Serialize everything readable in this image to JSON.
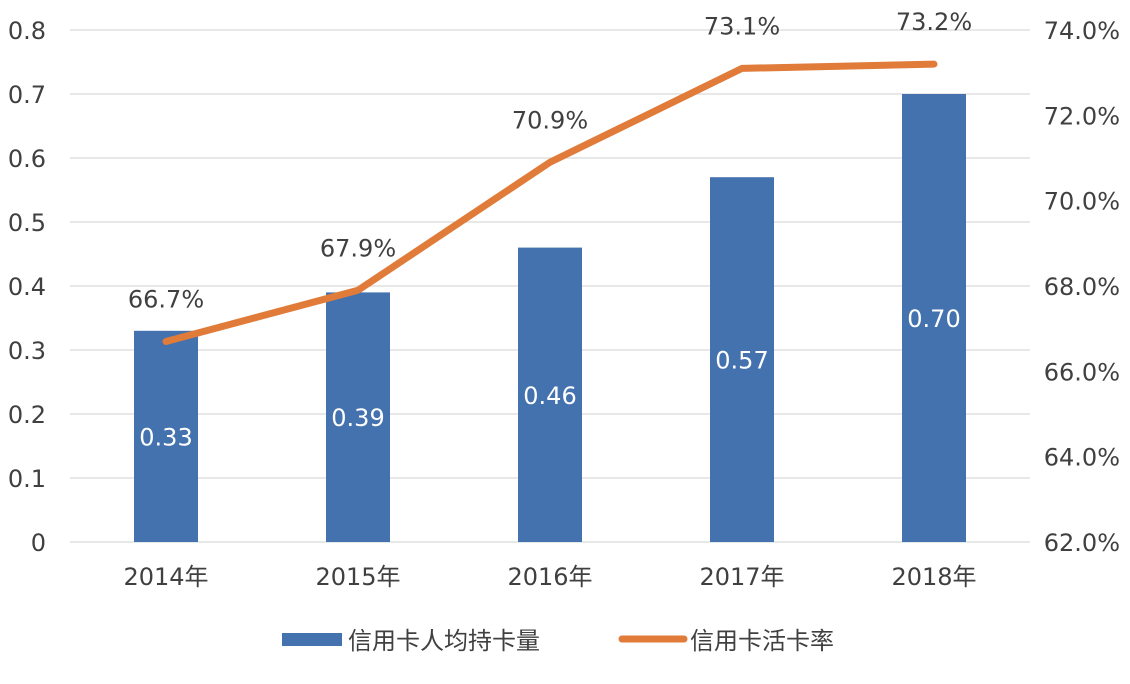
{
  "chart_data": {
    "type": "bar",
    "categories": [
      "2014年",
      "2015年",
      "2016年",
      "2017年",
      "2018年"
    ],
    "series": [
      {
        "name": "信用卡人均持卡量",
        "type": "bar",
        "axis": "left",
        "values": [
          0.33,
          0.39,
          0.46,
          0.57,
          0.7
        ],
        "labels": [
          "0.33",
          "0.39",
          "0.46",
          "0.57",
          "0.70"
        ],
        "color": "#4472AF"
      },
      {
        "name": "信用卡活卡率",
        "type": "line",
        "axis": "right",
        "values": [
          66.7,
          67.9,
          70.9,
          73.1,
          73.2
        ],
        "labels": [
          "66.7%",
          "67.9%",
          "70.9%",
          "73.1%",
          "73.2%"
        ],
        "color": "#E07B39"
      }
    ],
    "y_left": {
      "min": 0,
      "max": 0.8,
      "ticks": [
        0,
        0.1,
        0.2,
        0.3,
        0.4,
        0.5,
        0.6,
        0.7,
        0.8
      ],
      "tick_labels": [
        "0",
        "0.1",
        "0.2",
        "0.3",
        "0.4",
        "0.5",
        "0.6",
        "0.7",
        "0.8"
      ]
    },
    "y_right": {
      "min": 62.0,
      "max": 74.0,
      "ticks": [
        62,
        64,
        66,
        68,
        70,
        72,
        74
      ],
      "tick_labels": [
        "62.0%",
        "64.0%",
        "66.0%",
        "68.0%",
        "70.0%",
        "72.0%",
        "74.0%"
      ]
    },
    "grid": true,
    "legend_position": "bottom",
    "colors": {
      "grid": "#D9D9D9",
      "text": "#404040",
      "bar_label": "#FFFFFF",
      "line_label": "#404040"
    }
  }
}
